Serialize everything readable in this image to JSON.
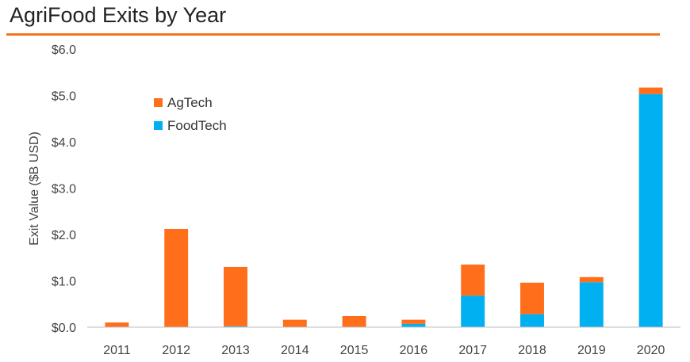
{
  "chart_data": {
    "type": "bar",
    "stacked": true,
    "title": "AgriFood Exits by Year",
    "ylabel": "Exit Value ($B USD)",
    "xlabel": "",
    "ylim": [
      0,
      6
    ],
    "yticks": [
      "$0.0",
      "$1.0",
      "$2.0",
      "$3.0",
      "$4.0",
      "$5.0",
      "$6.0"
    ],
    "categories": [
      "2011",
      "2012",
      "2013",
      "2014",
      "2015",
      "2016",
      "2017",
      "2018",
      "2019",
      "2020"
    ],
    "series": [
      {
        "name": "FoodTech",
        "color": "#00b0f0",
        "values": [
          0,
          0,
          0.02,
          0,
          0,
          0.07,
          0.68,
          0.28,
          0.97,
          5.03
        ]
      },
      {
        "name": "AgTech",
        "color": "#ff6e1b",
        "values": [
          0.1,
          2.12,
          1.28,
          0.16,
          0.24,
          0.09,
          0.67,
          0.68,
          0.11,
          0.14
        ]
      }
    ],
    "legend": {
      "position": "top-left",
      "order": [
        "AgTech",
        "FoodTech"
      ]
    },
    "grid": false
  }
}
